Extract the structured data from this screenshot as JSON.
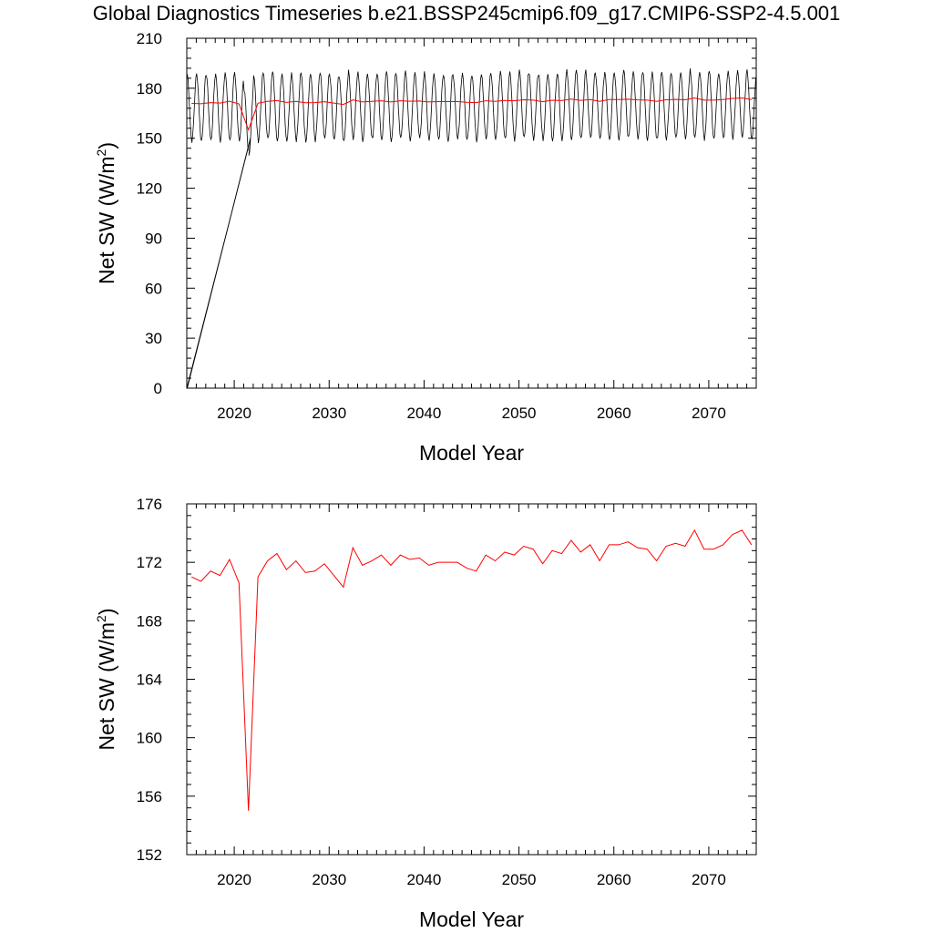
{
  "title": "Global Diagnostics Timeseries b.e21.BSSP245cmip6.f09_g17.CMIP6-SSP2-4.5.001",
  "chart_data": [
    {
      "type": "line",
      "xlabel": "Model Year",
      "ylabel_main": "Net SW (W/m",
      "ylabel_sup": "2",
      "ylabel_end": ")",
      "xlim": [
        2015,
        2075
      ],
      "ylim": [
        0,
        210
      ],
      "x_ticks": [
        2020,
        2030,
        2040,
        2050,
        2060,
        2070
      ],
      "x_tick_labels": [
        "2020",
        "2030",
        "2040",
        "2050",
        "2060",
        "2070"
      ],
      "y_ticks": [
        0,
        30,
        60,
        90,
        120,
        150,
        180,
        210
      ],
      "y_tick_labels": [
        "0",
        "30",
        "60",
        "90",
        "120",
        "150",
        "180",
        "210"
      ],
      "grid": false,
      "series": [
        {
          "style": "monthly seasonal cycle",
          "color": "#000000",
          "monthly_mean_range": [
            149,
            189
          ],
          "annotation": "spurious segments from (2015, 0) to ~(2021.5, 145) and ~(2021.7, 150)"
        },
        {
          "style": "annual mean",
          "color": "#ff0000",
          "x": [
            2015.5,
            2016.5,
            2017.5,
            2018.5,
            2019.5,
            2020.5,
            2021.5,
            2022.5,
            2023.5,
            2024.5,
            2025.5,
            2026.5,
            2027.5,
            2028.5,
            2029.5,
            2030.5,
            2031.5,
            2032.5,
            2033.5,
            2034.5,
            2035.5,
            2036.5,
            2037.5,
            2038.5,
            2039.5,
            2040.5,
            2041.5,
            2042.5,
            2043.5,
            2044.5,
            2045.5,
            2046.5,
            2047.5,
            2048.5,
            2049.5,
            2050.5,
            2051.5,
            2052.5,
            2053.5,
            2054.5,
            2055.5,
            2056.5,
            2057.5,
            2058.5,
            2059.5,
            2060.5,
            2061.5,
            2062.5,
            2063.5,
            2064.5,
            2065.5,
            2066.5,
            2067.5,
            2068.5,
            2069.5,
            2070.5,
            2071.5,
            2072.5,
            2073.5,
            2074.5
          ],
          "y": [
            171.0,
            170.7,
            171.4,
            171.1,
            172.2,
            170.6,
            155.0,
            171.0,
            172.1,
            172.6,
            171.5,
            172.1,
            171.3,
            171.4,
            171.9,
            171.1,
            170.3,
            173.0,
            171.8,
            172.1,
            172.5,
            171.8,
            172.5,
            172.2,
            172.3,
            171.8,
            172.0,
            172.0,
            172.0,
            171.6,
            171.4,
            172.5,
            172.1,
            172.7,
            172.5,
            173.1,
            172.9,
            171.9,
            172.8,
            172.6,
            173.5,
            172.7,
            173.2,
            172.1,
            173.2,
            173.2,
            173.4,
            173.0,
            172.9,
            172.1,
            173.1,
            173.3,
            173.1,
            174.2,
            172.9,
            172.9,
            173.2,
            173.9,
            174.2,
            173.2
          ]
        }
      ]
    },
    {
      "type": "line",
      "xlabel": "Model Year",
      "ylabel_main": "Net SW (W/m",
      "ylabel_sup": "2",
      "ylabel_end": ")",
      "xlim": [
        2015,
        2075
      ],
      "ylim": [
        152,
        176
      ],
      "x_ticks": [
        2020,
        2030,
        2040,
        2050,
        2060,
        2070
      ],
      "x_tick_labels": [
        "2020",
        "2030",
        "2040",
        "2050",
        "2060",
        "2070"
      ],
      "y_ticks": [
        152,
        156,
        160,
        164,
        168,
        172,
        176
      ],
      "y_tick_labels": [
        "152",
        "156",
        "160",
        "164",
        "168",
        "172",
        "176"
      ],
      "grid": false,
      "series": [
        {
          "style": "annual mean",
          "color": "#ff0000",
          "x": [
            2015.5,
            2016.5,
            2017.5,
            2018.5,
            2019.5,
            2020.5,
            2021.5,
            2022.5,
            2023.5,
            2024.5,
            2025.5,
            2026.5,
            2027.5,
            2028.5,
            2029.5,
            2030.5,
            2031.5,
            2032.5,
            2033.5,
            2034.5,
            2035.5,
            2036.5,
            2037.5,
            2038.5,
            2039.5,
            2040.5,
            2041.5,
            2042.5,
            2043.5,
            2044.5,
            2045.5,
            2046.5,
            2047.5,
            2048.5,
            2049.5,
            2050.5,
            2051.5,
            2052.5,
            2053.5,
            2054.5,
            2055.5,
            2056.5,
            2057.5,
            2058.5,
            2059.5,
            2060.5,
            2061.5,
            2062.5,
            2063.5,
            2064.5,
            2065.5,
            2066.5,
            2067.5,
            2068.5,
            2069.5,
            2070.5,
            2071.5,
            2072.5,
            2073.5,
            2074.5
          ],
          "y": [
            171.0,
            170.7,
            171.4,
            171.1,
            172.2,
            170.6,
            155.0,
            171.0,
            172.1,
            172.6,
            171.5,
            172.1,
            171.3,
            171.4,
            171.9,
            171.1,
            170.3,
            173.0,
            171.8,
            172.1,
            172.5,
            171.8,
            172.5,
            172.2,
            172.3,
            171.8,
            172.0,
            172.0,
            172.0,
            171.6,
            171.4,
            172.5,
            172.1,
            172.7,
            172.5,
            173.1,
            172.9,
            171.9,
            172.8,
            172.6,
            173.5,
            172.7,
            173.2,
            172.1,
            173.2,
            173.2,
            173.4,
            173.0,
            172.9,
            172.1,
            173.1,
            173.3,
            173.1,
            174.2,
            172.9,
            172.9,
            173.2,
            173.9,
            174.2,
            173.2
          ]
        }
      ]
    }
  ]
}
